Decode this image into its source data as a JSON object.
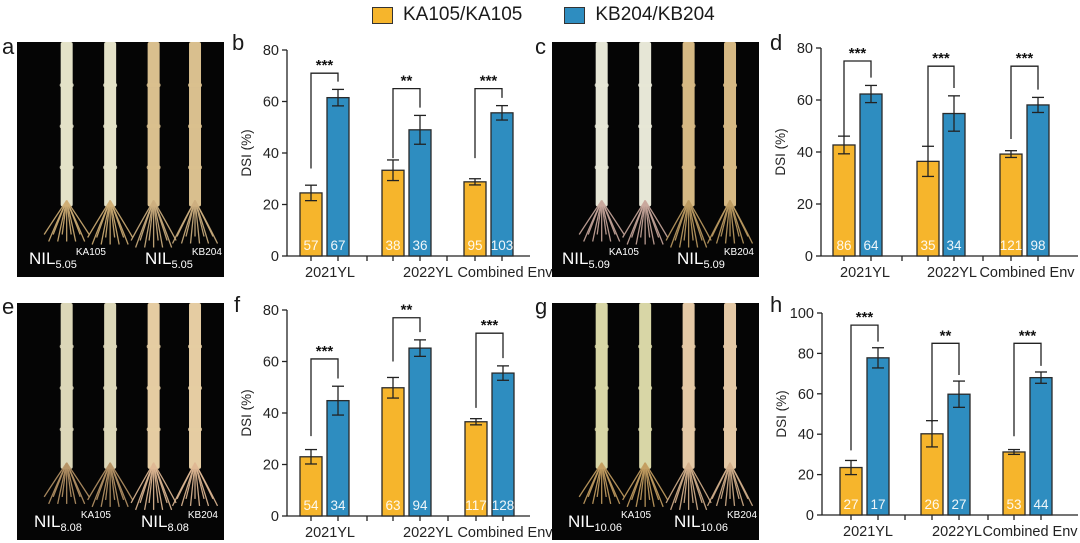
{
  "legend": {
    "items": [
      {
        "label": "KA105/KA105",
        "color": "#F6B52C"
      },
      {
        "label": "KB204/KB204",
        "color": "#2E8DC0"
      }
    ]
  },
  "photos": [
    {
      "letter": "a",
      "left_label": {
        "base": "NIL",
        "sub": "5.05",
        "sup": "KA105"
      },
      "right_label": {
        "base": "NIL",
        "sub": "5.05",
        "sup": "KB204"
      },
      "left_color": "#E4E2C8",
      "right_color": "#D9BF8E",
      "left_roots": "#CFAE74",
      "right_roots": "#CDAF80"
    },
    {
      "letter": "c",
      "left_label": {
        "base": "NIL",
        "sub": "5.09",
        "sup": "KA105"
      },
      "right_label": {
        "base": "NIL",
        "sub": "5.09",
        "sup": "KB204"
      },
      "left_color": "#E6E6D6",
      "right_color": "#D6B984",
      "left_roots": "#C9A79C",
      "right_roots": "#BC9B62"
    },
    {
      "letter": "e",
      "left_label": {
        "base": "NIL",
        "sub": "8.08",
        "sup": "KA105"
      },
      "right_label": {
        "base": "NIL",
        "sub": "8.08",
        "sup": "KB204"
      },
      "left_color": "#DCD7B8",
      "right_color": "#E5CCA2",
      "left_roots": "#B69366",
      "right_roots": "#E0B995"
    },
    {
      "letter": "g",
      "left_label": {
        "base": "NIL",
        "sub": "10.06",
        "sup": "KA105"
      },
      "right_label": {
        "base": "NIL",
        "sub": "10.06",
        "sup": "KB204"
      },
      "left_color": "#D8D6A6",
      "right_color": "#E4C9A6",
      "left_roots": "#C49E62",
      "right_roots": "#D4B08C"
    }
  ],
  "chart_data": [
    {
      "panel": "b",
      "type": "bar",
      "ylabel": "DSI (%)",
      "ylim": [
        0,
        80
      ],
      "yticks": [
        0,
        20,
        40,
        60,
        80
      ],
      "categories": [
        "2021YL",
        "2022YL",
        "Combined Env"
      ],
      "series": [
        {
          "name": "KA105/KA105",
          "values": [
            24.5,
            33.3,
            28.8
          ],
          "errors": [
            3.0,
            4.0,
            1.2
          ],
          "n": [
            "57",
            "38",
            "95"
          ]
        },
        {
          "name": "KB204/KB204",
          "values": [
            61.5,
            49.0,
            55.6
          ],
          "errors": [
            3.2,
            5.6,
            2.8
          ],
          "n": [
            "67",
            "36",
            "103"
          ]
        }
      ],
      "significance": [
        "***",
        "**",
        "***"
      ],
      "sig_bracket_y": [
        71,
        65,
        65
      ],
      "sig_left_y": [
        34,
        38,
        38
      ]
    },
    {
      "panel": "d",
      "type": "bar",
      "ylabel": "DSI (%)",
      "ylim": [
        0,
        80
      ],
      "yticks": [
        0,
        20,
        40,
        60,
        80
      ],
      "categories": [
        "2021YL",
        "2022YL",
        "Combined Env"
      ],
      "series": [
        {
          "name": "KA105/KA105",
          "values": [
            42.7,
            36.4,
            39.2
          ],
          "errors": [
            3.4,
            5.8,
            1.3
          ],
          "n": [
            "86",
            "35",
            "121"
          ]
        },
        {
          "name": "KB204/KB204",
          "values": [
            62.3,
            54.8,
            58.1
          ],
          "errors": [
            3.3,
            6.8,
            2.9
          ],
          "n": [
            "64",
            "34",
            "98"
          ]
        }
      ],
      "significance": [
        "***",
        "***",
        "***"
      ],
      "sig_bracket_y": [
        75,
        73,
        73
      ],
      "sig_left_y": [
        46,
        42,
        45
      ]
    },
    {
      "panel": "f",
      "type": "bar",
      "ylabel": "DSI (%)",
      "ylim": [
        0,
        80
      ],
      "yticks": [
        0,
        20,
        40,
        60,
        80
      ],
      "categories": [
        "2021YL",
        "2022YL",
        "Combined Env"
      ],
      "series": [
        {
          "name": "KA105/KA105",
          "values": [
            23.0,
            49.8,
            36.6
          ],
          "errors": [
            2.8,
            4.0,
            1.2
          ],
          "n": [
            "54",
            "63",
            "117"
          ]
        },
        {
          "name": "KB204/KB204",
          "values": [
            44.8,
            65.2,
            55.5
          ],
          "errors": [
            5.6,
            3.2,
            2.8
          ],
          "n": [
            "34",
            "94",
            "128"
          ]
        }
      ],
      "significance": [
        "***",
        "**",
        "***"
      ],
      "sig_bracket_y": [
        61,
        77,
        71
      ],
      "sig_left_y": [
        31,
        60,
        42
      ]
    },
    {
      "panel": "h",
      "type": "bar",
      "ylabel": "DSI (%)",
      "ylim": [
        0,
        100
      ],
      "yticks": [
        0,
        20,
        40,
        60,
        80,
        100
      ],
      "categories": [
        "2021YL",
        "2022YL",
        "Combined Env"
      ],
      "series": [
        {
          "name": "KA105/KA105",
          "values": [
            23.5,
            40.2,
            31.2
          ],
          "errors": [
            3.5,
            6.5,
            1.2
          ],
          "n": [
            "27",
            "26",
            "53"
          ]
        },
        {
          "name": "KB204/KB204",
          "values": [
            77.8,
            59.8,
            68.0
          ],
          "errors": [
            5.0,
            6.5,
            2.8
          ],
          "n": [
            "17",
            "27",
            "44"
          ]
        }
      ],
      "significance": [
        "***",
        "**",
        "***"
      ],
      "sig_bracket_y": [
        94,
        85,
        85
      ],
      "sig_left_y": [
        32,
        46,
        39
      ]
    }
  ]
}
